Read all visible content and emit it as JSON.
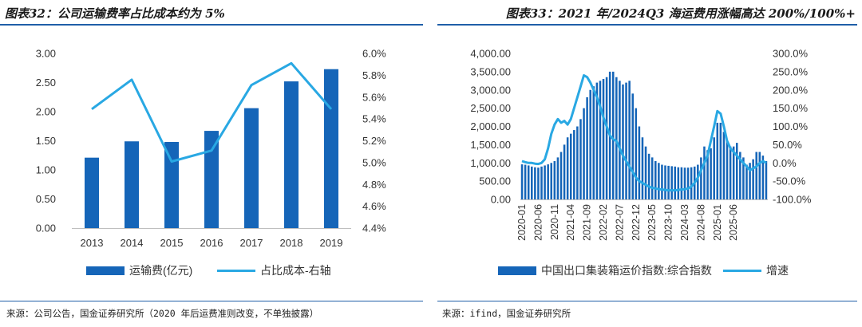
{
  "left": {
    "figure_title": "图表32：公司运输费率占比成本约为 5%",
    "source": "来源：公司公告，国金证券研究所（2020 年后运费准则改变，不单独披露）"
  },
  "right": {
    "figure_title": "图表33：2021 年/2024Q3 海运费用涨幅高达 200%/100%+",
    "source": "来源：ifind，国金证券研究所"
  },
  "colors": {
    "bar": "#1565b8",
    "line": "#29a8e3",
    "rule": "#1f5fa8"
  },
  "chart_data": [
    {
      "type": "bar",
      "title": "图表32：公司运输费率占比成本约为 5%",
      "categories": [
        "2013",
        "2014",
        "2015",
        "2016",
        "2017",
        "2018",
        "2019"
      ],
      "series": [
        {
          "name": "运输费(亿元)",
          "type": "bar",
          "axis": "left",
          "values": [
            1.21,
            1.49,
            1.48,
            1.67,
            2.06,
            2.52,
            2.73
          ]
        },
        {
          "name": "占比成本-右轴",
          "type": "line",
          "axis": "right",
          "values": [
            5.49,
            5.76,
            5.01,
            5.11,
            5.71,
            5.91,
            5.49
          ]
        }
      ],
      "ylim": [
        0,
        3.0
      ],
      "yticks": [
        "0.00",
        "0.50",
        "1.00",
        "1.50",
        "2.00",
        "2.50",
        "3.00"
      ],
      "y2lim": [
        4.4,
        6.0
      ],
      "y2ticks": [
        "4.4%",
        "4.6%",
        "4.8%",
        "5.0%",
        "5.2%",
        "5.4%",
        "5.6%",
        "5.8%",
        "6.0%"
      ],
      "legend": {
        "position": "bottom",
        "entries": [
          "运输费(亿元)",
          "占比成本-右轴"
        ]
      }
    },
    {
      "type": "bar",
      "title": "图表33：2021 年/2024Q3 海运费用涨幅高达 200%/100%+",
      "x_start": "2020-01",
      "x_tick_labels": [
        "2020-01",
        "2020-06",
        "2020-11",
        "2021-04",
        "2021-09",
        "2022-02",
        "2022-07",
        "2022-12",
        "2023-05",
        "2023-10",
        "2024-03",
        "2024-08",
        "2025-01",
        "2025-06"
      ],
      "series": [
        {
          "name": "中国出口集装箱运价指数:综合指数",
          "type": "bar",
          "axis": "left",
          "values": [
            960,
            950,
            930,
            900,
            880,
            870,
            900,
            930,
            960,
            1000,
            1050,
            1150,
            1300,
            1500,
            1700,
            1800,
            1900,
            2000,
            2200,
            2500,
            2800,
            3000,
            3100,
            3200,
            3250,
            3300,
            3350,
            3500,
            3500,
            3350,
            3250,
            3150,
            3200,
            3250,
            2900,
            2500,
            2000,
            1700,
            1450,
            1250,
            1150,
            1050,
            1000,
            950,
            930,
            920,
            910,
            900,
            880,
            880,
            870,
            870,
            880,
            900,
            950,
            1150,
            1450,
            1350,
            1400,
            1700,
            2100,
            2100,
            1850,
            1600,
            1450,
            1450,
            1550,
            1300,
            1150,
            950,
            1000,
            1100,
            1300,
            1300,
            1200,
            1050
          ]
        },
        {
          "name": "增速",
          "type": "line",
          "axis": "right",
          "values": [
            5,
            2,
            0,
            0,
            -2,
            -3,
            0,
            10,
            40,
            80,
            105,
            120,
            110,
            115,
            105,
            120,
            150,
            180,
            210,
            240,
            235,
            220,
            200,
            180,
            155,
            125,
            100,
            75,
            65,
            60,
            40,
            20,
            5,
            -10,
            -25,
            -40,
            -50,
            -55,
            -60,
            -65,
            -68,
            -70,
            -72,
            -73,
            -74,
            -75,
            -75,
            -75,
            -74,
            -73,
            -72,
            -70,
            -65,
            -55,
            -40,
            -20,
            0,
            20,
            60,
            100,
            142,
            135,
            100,
            60,
            40,
            30,
            20,
            10,
            0,
            -10,
            -20,
            -15,
            -10,
            0,
            5,
            0
          ]
        }
      ],
      "ylim": [
        0,
        4000
      ],
      "yticks": [
        "0.00",
        "500.00",
        "1,000.00",
        "1,500.00",
        "2,000.00",
        "2,500.00",
        "3,000.00",
        "3,500.00",
        "4,000.00"
      ],
      "y2lim": [
        -100,
        300
      ],
      "y2ticks": [
        "-100.0%",
        "-50.0%",
        "0.0%",
        "50.0%",
        "100.0%",
        "150.0%",
        "200.0%",
        "250.0%",
        "300.0%"
      ],
      "legend": {
        "position": "bottom",
        "entries": [
          "中国出口集装箱运价指数:综合指数",
          "增速"
        ]
      }
    }
  ]
}
